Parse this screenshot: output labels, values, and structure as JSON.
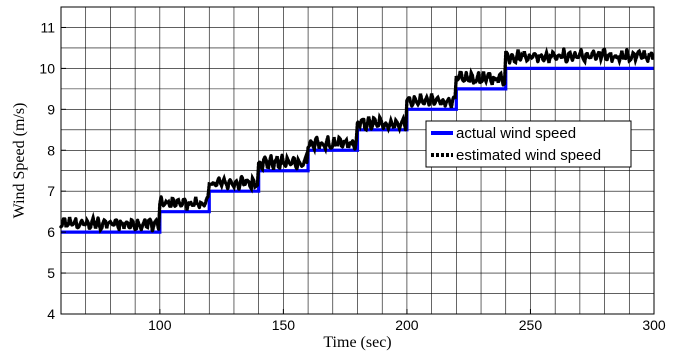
{
  "chart_data": {
    "type": "line",
    "xlabel": "Time (sec)",
    "ylabel": "Wind Speed (m/s)",
    "xlim": [
      60,
      300
    ],
    "ylim": [
      4,
      11.5
    ],
    "xticks": [
      100,
      150,
      200,
      250,
      300
    ],
    "yticks": [
      4,
      5,
      6,
      7,
      8,
      9,
      10,
      11
    ],
    "minor_grid_x_step": 10,
    "minor_grid_y_step": 0.5,
    "grid": true,
    "legend": {
      "placement": "center-right"
    },
    "series": [
      {
        "name": "actual wind speed",
        "color": "#0000ff",
        "style": "solid",
        "x": [
          60,
          100,
          100,
          120,
          120,
          140,
          140,
          160,
          160,
          180,
          180,
          200,
          200,
          220,
          220,
          240,
          240,
          300
        ],
        "y": [
          6,
          6,
          6.5,
          6.5,
          7,
          7,
          7.5,
          7.5,
          8,
          8,
          8.5,
          8.5,
          9,
          9,
          9.5,
          9.5,
          10,
          10
        ]
      },
      {
        "name": "estimated wind speed",
        "color": "#000000",
        "style": "dotted",
        "step_x": [
          60,
          100,
          120,
          140,
          160,
          180,
          200,
          220,
          240,
          300
        ],
        "step_y": [
          6.2,
          6.7,
          7.2,
          7.7,
          8.15,
          8.65,
          9.2,
          9.75,
          10.3
        ],
        "noise_amplitude": 0.18
      }
    ]
  }
}
